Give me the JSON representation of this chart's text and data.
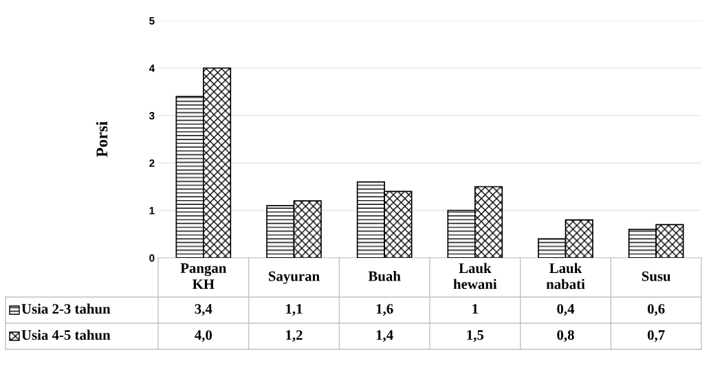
{
  "chart_data": {
    "type": "bar",
    "ylabel": "Porsi",
    "categories": [
      "Pangan\nKH",
      "Sayuran",
      "Buah",
      "Lauk\nhewani",
      "Lauk\nnabati",
      "Susu"
    ],
    "series": [
      {
        "name": "Usia 2-3 tahun",
        "color": "#000000",
        "values": [
          3.4,
          1.1,
          1.6,
          1,
          0.4,
          0.6
        ],
        "value_labels": [
          "3,4",
          "1,1",
          "1,6",
          "1",
          "0,4",
          "0,6"
        ]
      },
      {
        "name": "Usia 4-5 tahun",
        "color": "#000000",
        "values": [
          4.0,
          1.2,
          1.4,
          1.5,
          0.8,
          0.7
        ],
        "value_labels": [
          "4,0",
          "1,2",
          "1,4",
          "1,5",
          "0,8",
          "0,7"
        ]
      }
    ],
    "ylim": [
      0,
      5
    ],
    "yticks": [
      0,
      1,
      2,
      3,
      4,
      5
    ],
    "grid": "y",
    "legend": "bottom"
  }
}
